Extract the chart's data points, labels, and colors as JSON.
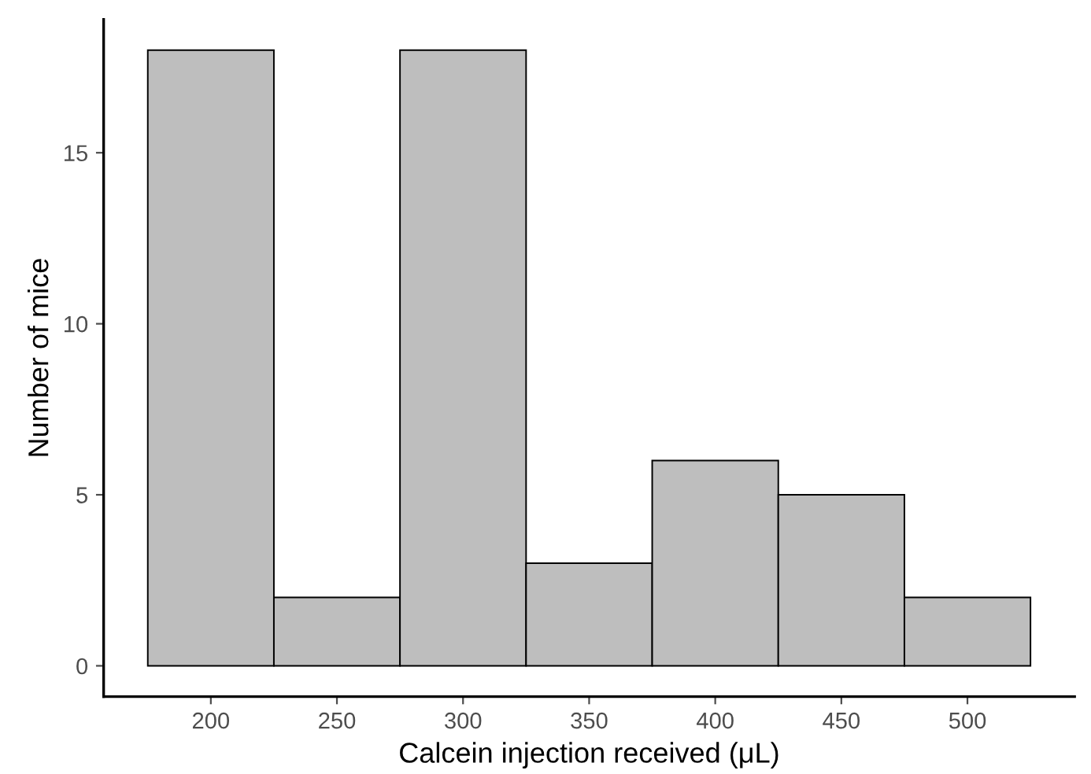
{
  "chart_data": {
    "type": "histogram",
    "xlabel": "Calcein injection received (μL)",
    "ylabel": "Number of mice",
    "bins": [
      175,
      225,
      275,
      325,
      375,
      425,
      475,
      525
    ],
    "values": [
      18,
      2,
      18,
      3,
      6,
      5,
      2
    ],
    "color": "#bebebe",
    "xlim": [
      157.5,
      542.5
    ],
    "xticks": [
      200,
      250,
      300,
      350,
      400,
      450,
      500
    ],
    "ylim": [
      -0.9,
      18.9
    ],
    "yticks": [
      0,
      5,
      10,
      15
    ],
    "grid": false
  }
}
